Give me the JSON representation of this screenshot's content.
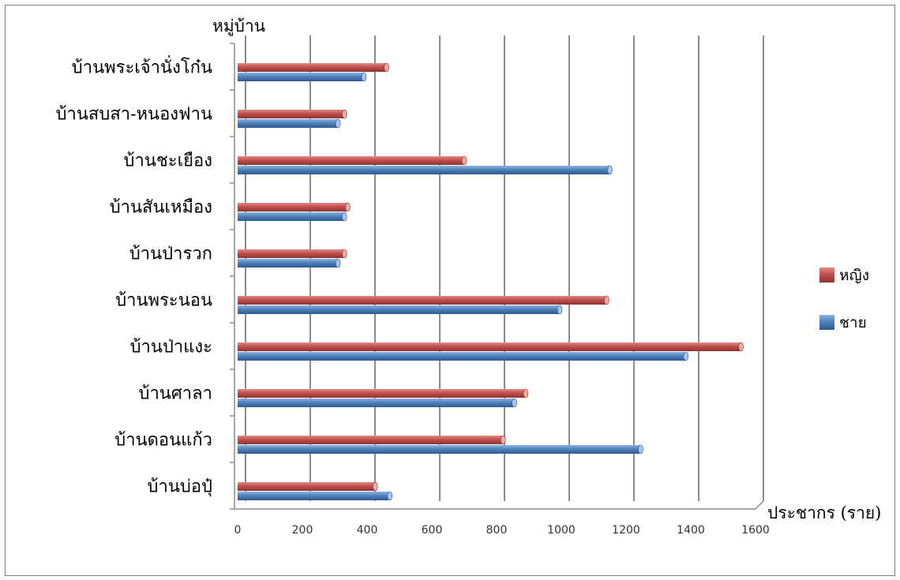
{
  "chart_data": {
    "type": "bar",
    "orientation": "horizontal",
    "y_axis_title": "หมู่บ้าน",
    "x_axis_title": "ประชากร (ราย)",
    "xlim": [
      0,
      1600
    ],
    "x_ticks": [
      "0",
      "200",
      "400",
      "600",
      "800",
      "1000",
      "1200",
      "1400",
      "1600"
    ],
    "grid": "vertical",
    "legend_position": "right",
    "categories": [
      "บ้านพระเจ้านั่งโก๋น",
      "บ้านสบสา-หนองฟาน",
      "บ้านชะเยือง",
      "บ้านสันเหมือง",
      "บ้านป่ารวก",
      "บ้านพระนอน",
      "บ้านป่าแงะ",
      "บ้านศาลา",
      "บ้านดอนแก้ว",
      "บ้านบ่อปุ๋"
    ],
    "series": [
      {
        "name": "หญิง",
        "color": "#c0504d",
        "values": [
          460,
          330,
          700,
          340,
          330,
          1140,
          1555,
          890,
          820,
          425
        ]
      },
      {
        "name": "ชาย",
        "color": "#4f81bd",
        "values": [
          390,
          310,
          1150,
          330,
          310,
          995,
          1385,
          855,
          1245,
          470
        ]
      }
    ]
  }
}
